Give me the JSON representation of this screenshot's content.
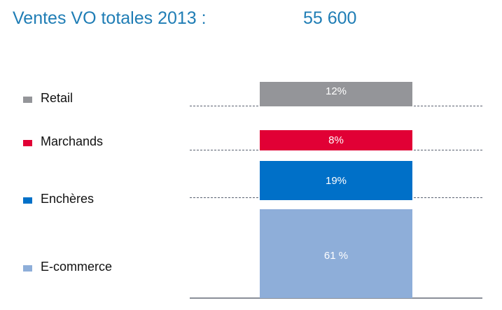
{
  "header": {
    "title": "Ventes VO totales 2013 :",
    "total": "55 600"
  },
  "chart_data": {
    "type": "bar",
    "title": "Ventes VO totales 2013 :",
    "categories": [
      "Retail",
      "Marchands",
      "Enchères",
      "E-commerce"
    ],
    "values": [
      12,
      8,
      19,
      61
    ],
    "labels": [
      "12%",
      "8%",
      "19%",
      "61 %"
    ],
    "colors": [
      "#949599",
      "#e10035",
      "#0070c8",
      "#8eaed9"
    ],
    "legend": "left",
    "grid": false
  }
}
